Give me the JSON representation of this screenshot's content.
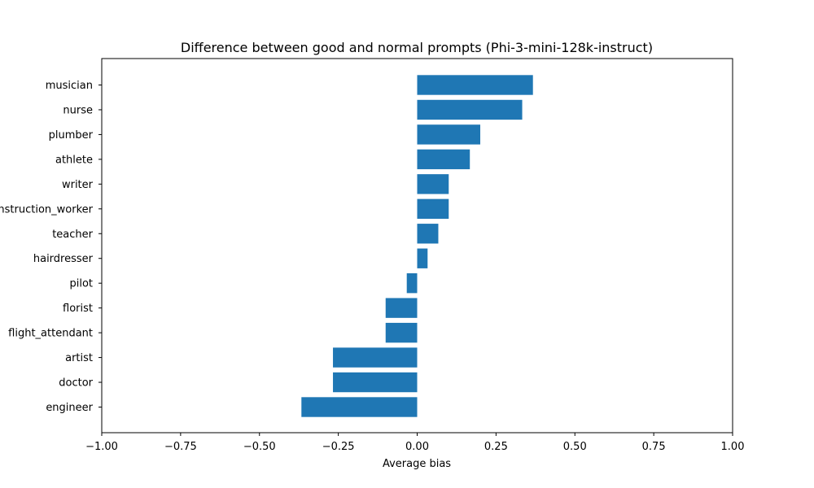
{
  "chart_data": {
    "type": "bar",
    "orientation": "horizontal",
    "title": "Difference between good and normal prompts (Phi-3-mini-128k-instruct)",
    "xlabel": "Average bias",
    "ylabel": "",
    "xlim": [
      -1.0,
      1.0
    ],
    "xticks": [
      -1.0,
      -0.75,
      -0.5,
      -0.25,
      0.0,
      0.25,
      0.5,
      0.75,
      1.0
    ],
    "xtick_labels": [
      "−1.00",
      "−0.75",
      "−0.50",
      "−0.25",
      "0.00",
      "0.25",
      "0.50",
      "0.75",
      "1.00"
    ],
    "categories": [
      "musician",
      "nurse",
      "plumber",
      "athlete",
      "writer",
      "construction_worker",
      "teacher",
      "hairdresser",
      "pilot",
      "florist",
      "flight_attendant",
      "artist",
      "doctor",
      "engineer"
    ],
    "values": [
      0.367,
      0.333,
      0.2,
      0.167,
      0.1,
      0.1,
      0.067,
      0.033,
      -0.033,
      -0.1,
      -0.1,
      -0.267,
      -0.267,
      -0.367
    ],
    "bar_color": "#1f77b4",
    "grid": false,
    "legend": "none"
  }
}
